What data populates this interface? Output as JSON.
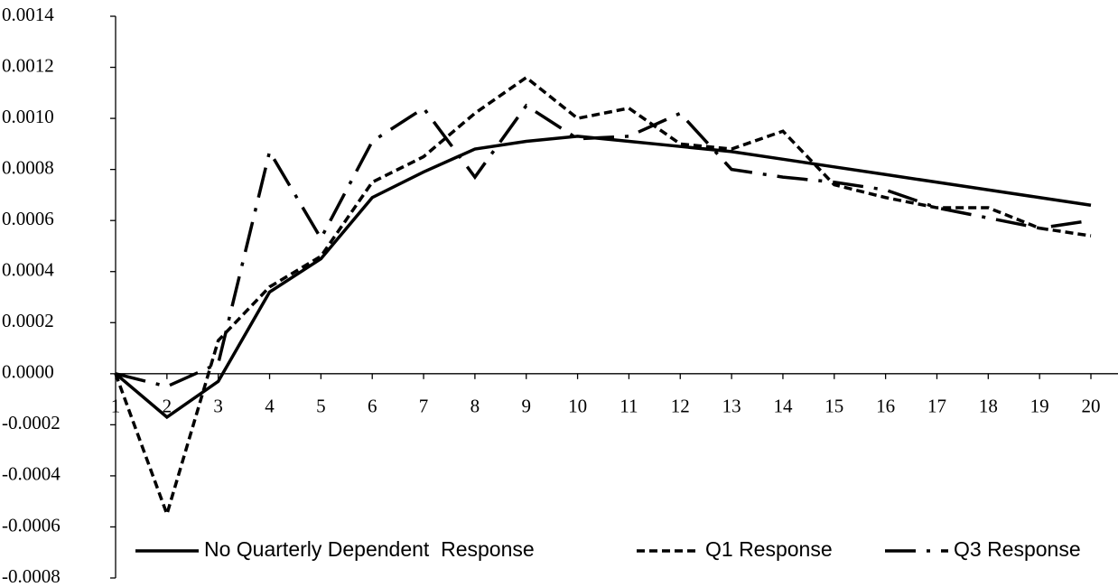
{
  "chart_data": {
    "type": "line",
    "categories": [
      "1",
      "2",
      "3",
      "4",
      "5",
      "6",
      "7",
      "8",
      "9",
      "10",
      "11",
      "12",
      "13",
      "14",
      "15",
      "16",
      "17",
      "18",
      "19",
      "20"
    ],
    "series": [
      {
        "name": "No Quarterly Dependent  Response",
        "color": "#000000",
        "dash": "solid",
        "values": [
          0,
          -0.00017,
          -3e-05,
          0.00032,
          0.00045,
          0.00069,
          0.00079,
          0.00088,
          0.00091,
          0.00093,
          0.00091,
          0.00089,
          0.00087,
          0.00084,
          0.00081,
          0.00078,
          0.00075,
          0.00072,
          0.00069,
          0.00066
        ]
      },
      {
        "name": "Q1 Response",
        "color": "#000000",
        "dash": "dashed",
        "values": [
          0,
          -0.00055,
          0.00013,
          0.00034,
          0.00046,
          0.00075,
          0.00085,
          0.00102,
          0.00116,
          0.001,
          0.00104,
          0.0009,
          0.00088,
          0.00095,
          0.00074,
          0.00069,
          0.00065,
          0.00065,
          0.00057,
          0.00054
        ]
      },
      {
        "name": "Q3 Response",
        "color": "#000000",
        "dash": "dashdot",
        "values": [
          0,
          -5e-05,
          4e-05,
          0.00087,
          0.00053,
          0.00091,
          0.00104,
          0.00077,
          0.00105,
          0.00092,
          0.00093,
          0.00102,
          0.0008,
          0.00077,
          0.00075,
          0.00072,
          0.00065,
          0.00061,
          0.00057,
          0.0006
        ]
      }
    ],
    "ylim": [
      -0.0008,
      0.0014
    ],
    "yticks": [
      {
        "value": -0.0008,
        "label": "-0.0008"
      },
      {
        "value": -0.0006,
        "label": "-0.0006"
      },
      {
        "value": -0.0004,
        "label": "-0.0004"
      },
      {
        "value": -0.0002,
        "label": "-0.0002"
      },
      {
        "value": 0,
        "label": "0.0000"
      },
      {
        "value": 0.0002,
        "label": "0.0002"
      },
      {
        "value": 0.0004,
        "label": "0.0004"
      },
      {
        "value": 0.0006,
        "label": "0.0006"
      },
      {
        "value": 0.0008,
        "label": "0.0008"
      },
      {
        "value": 0.001,
        "label": "0.0010"
      },
      {
        "value": 0.0012,
        "label": "0.0012"
      },
      {
        "value": 0.0014,
        "label": "0.0014"
      }
    ],
    "grid": false,
    "legend": "bottom"
  }
}
